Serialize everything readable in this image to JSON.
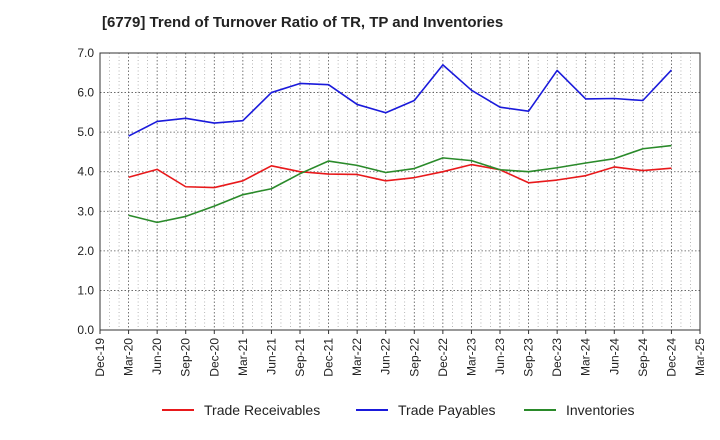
{
  "chart_data": {
    "type": "line",
    "title": "[6779]  Trend of Turnover Ratio of TR, TP and Inventories",
    "xlabel": "",
    "ylabel": "",
    "ylim": [
      0,
      7
    ],
    "yticks": [
      "0.0",
      "1.0",
      "2.0",
      "3.0",
      "4.0",
      "5.0",
      "6.0",
      "7.0"
    ],
    "categories": [
      "Dec-19",
      "Mar-20",
      "Jun-20",
      "Sep-20",
      "Dec-20",
      "Mar-21",
      "Jun-21",
      "Sep-21",
      "Dec-21",
      "Mar-22",
      "Jun-22",
      "Sep-22",
      "Dec-22",
      "Mar-23",
      "Jun-23",
      "Sep-23",
      "Dec-23",
      "Mar-24",
      "Jun-24",
      "Sep-24",
      "Dec-24",
      "Mar-25"
    ],
    "grid": true,
    "legend_position": "bottom",
    "series": [
      {
        "name": "Trade Receivables",
        "color": "#e8191b",
        "values": [
          null,
          3.86,
          4.06,
          3.62,
          3.6,
          3.77,
          4.15,
          4.0,
          3.94,
          3.93,
          3.77,
          3.85,
          4.0,
          4.18,
          4.05,
          3.72,
          3.79,
          3.9,
          4.12,
          4.03,
          4.09,
          null
        ]
      },
      {
        "name": "Trade Payables",
        "color": "#1a1adb",
        "values": [
          null,
          4.9,
          5.27,
          5.35,
          5.23,
          5.29,
          6.0,
          6.23,
          6.2,
          5.7,
          5.49,
          5.8,
          6.7,
          6.06,
          5.63,
          5.53,
          6.56,
          5.84,
          5.85,
          5.8,
          6.57,
          null
        ]
      },
      {
        "name": "Inventories",
        "color": "#2a8a2a",
        "values": [
          null,
          2.9,
          2.72,
          2.87,
          3.13,
          3.42,
          3.57,
          3.95,
          4.27,
          4.16,
          3.98,
          4.08,
          4.35,
          4.28,
          4.05,
          4.0,
          4.1,
          4.22,
          4.33,
          4.58,
          4.66,
          null
        ]
      }
    ]
  }
}
